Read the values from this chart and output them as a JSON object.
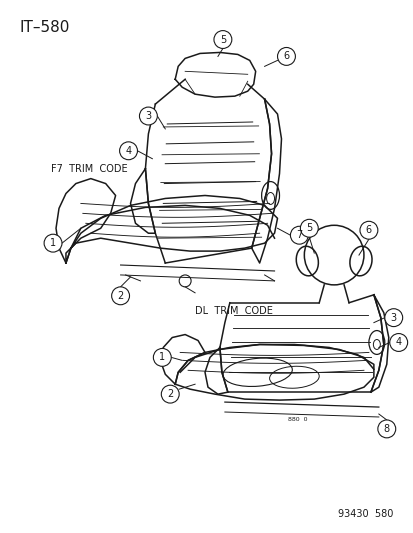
{
  "title": "IT–580",
  "footer": "93430  580",
  "background_color": "#ffffff",
  "line_color": "#1a1a1a",
  "label_f7": "F7  TRIM  CODE",
  "label_dl": "DL  TRIM  CODE",
  "fig_width": 4.14,
  "fig_height": 5.33,
  "dpi": 100
}
